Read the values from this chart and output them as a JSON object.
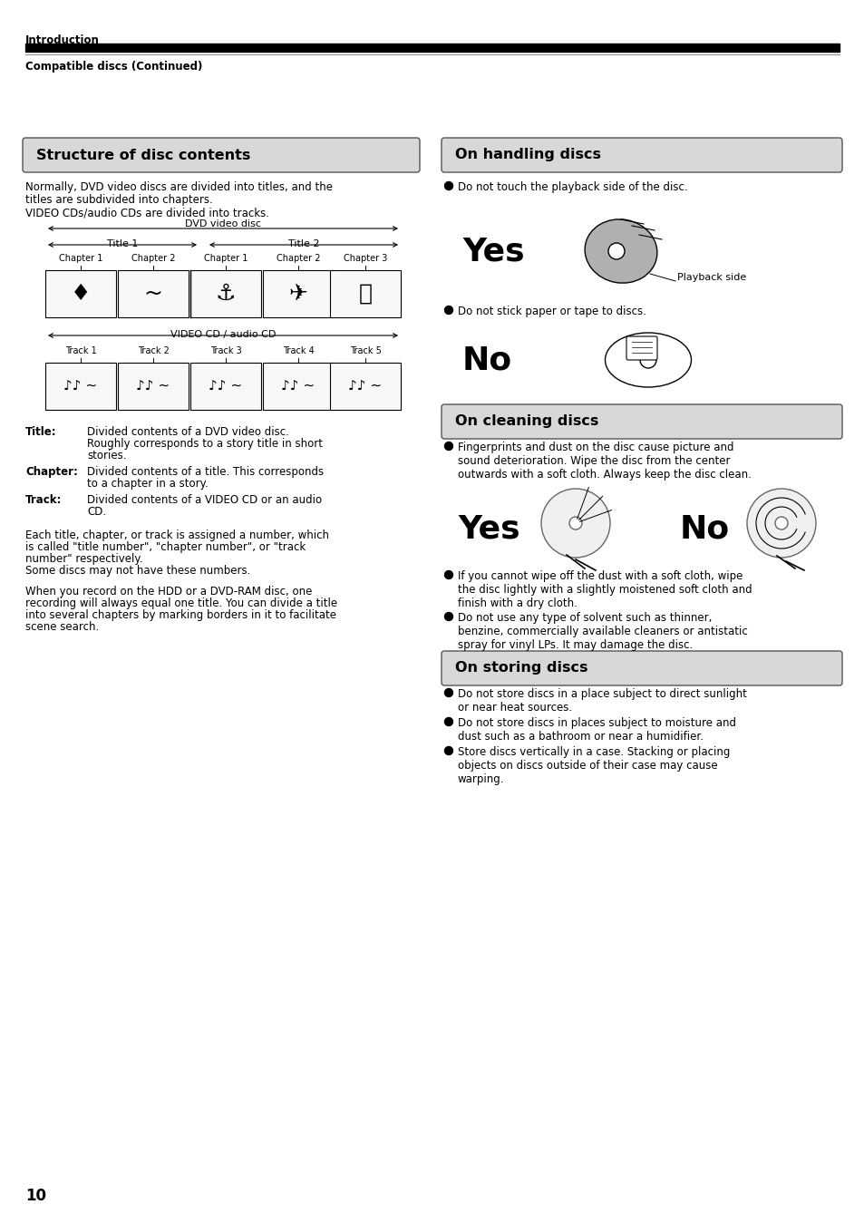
{
  "page_num": "10",
  "header_section": "Introduction",
  "subheader": "Compatible discs (Continued)",
  "bg_color": "#ffffff",
  "left_col": {
    "title": "Structure of disc contents",
    "intro_text": [
      "Normally, DVD video discs are divided into titles, and the",
      "titles are subdivided into chapters.",
      "VIDEO CDs/audio CDs are divided into tracks."
    ],
    "dvd_label": "DVD video disc",
    "title1_label": "Title 1",
    "title2_label": "Title 2",
    "chapters_row1": [
      "Chapter 1",
      "Chapter 2",
      "Chapter 1",
      "Chapter 2",
      "Chapter 3"
    ],
    "cd_label": "VIDEO CD / audio CD",
    "tracks": [
      "Track 1",
      "Track 2",
      "Track 3",
      "Track 4",
      "Track 5"
    ],
    "definitions": [
      {
        "term": "Title",
        "text": "Divided contents of a DVD video disc.\nRoughly corresponds to a story title in short\nstories."
      },
      {
        "term": "Chapter",
        "text": "Divided contents of a title. This corresponds\nto a chapter in a story."
      },
      {
        "term": "Track",
        "text": "Divided contents of a VIDEO CD or an audio\nCD."
      }
    ],
    "extra_text1": "Each title, chapter, or track is assigned a number, which\nis called \"title number\", \"chapter number\", or \"track\nnumber\" respectively.\nSome discs may not have these numbers.",
    "extra_text2": "When you record on the HDD or a DVD-RAM disc, one\nrecording will always equal one title. You can divide a title\ninto several chapters by marking borders in it to facilitate\nscene search."
  },
  "right_col": {
    "handling_title": "On handling discs",
    "handling_bullet1": "Do not touch the playback side of the disc.",
    "yes_label": "Yes",
    "playback_side_label": "Playback side",
    "handling_bullet2": "Do not stick paper or tape to discs.",
    "no_label_handling": "No",
    "cleaning_title": "On cleaning discs",
    "cleaning_bullet1": "Fingerprints and dust on the disc cause picture and\nsound deterioration. Wipe the disc from the center\noutwards with a soft cloth. Always keep the disc clean.",
    "yes_label2": "Yes",
    "no_label2": "No",
    "cleaning_bullet2": "If you cannot wipe off the dust with a soft cloth, wipe\nthe disc lightly with a slightly moistened soft cloth and\nfinish with a dry cloth.",
    "cleaning_bullet3": "Do not use any type of solvent such as thinner,\nbenzine, commercially available cleaners or antistatic\nspray for vinyl LPs. It may damage the disc.",
    "storing_title": "On storing discs",
    "storing_bullets": [
      "Do not store discs in a place subject to direct sunlight\nor near heat sources.",
      "Do not store discs in places subject to moisture and\ndust such as a bathroom or near a humidifier.",
      "Store discs vertically in a case. Stacking or placing\nobjects on discs outside of their case may cause\nwarping."
    ]
  }
}
